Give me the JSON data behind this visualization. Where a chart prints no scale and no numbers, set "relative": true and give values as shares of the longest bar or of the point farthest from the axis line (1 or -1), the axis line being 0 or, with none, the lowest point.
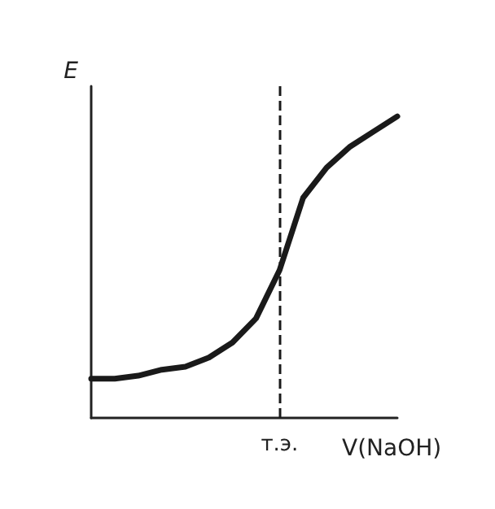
{
  "chart_data": {
    "type": "line",
    "relative": true,
    "xlabel": "V(NaOH)",
    "ylabel": "E",
    "grid": false,
    "marker": "none",
    "line_style": "solid",
    "categories": [
      null,
      null,
      null,
      null,
      null,
      null,
      null,
      null,
      null,
      null,
      null,
      null,
      null,
      null
    ],
    "series": [
      {
        "color": "#1a1a1a",
        "values": [
          0.13,
          0.13,
          0.14,
          0.16,
          0.17,
          0.2,
          0.25,
          0.33,
          0.49,
          0.73,
          0.83,
          0.9,
          0.95,
          1
        ]
      }
    ],
    "annotations": [
      "т.э."
    ]
  }
}
